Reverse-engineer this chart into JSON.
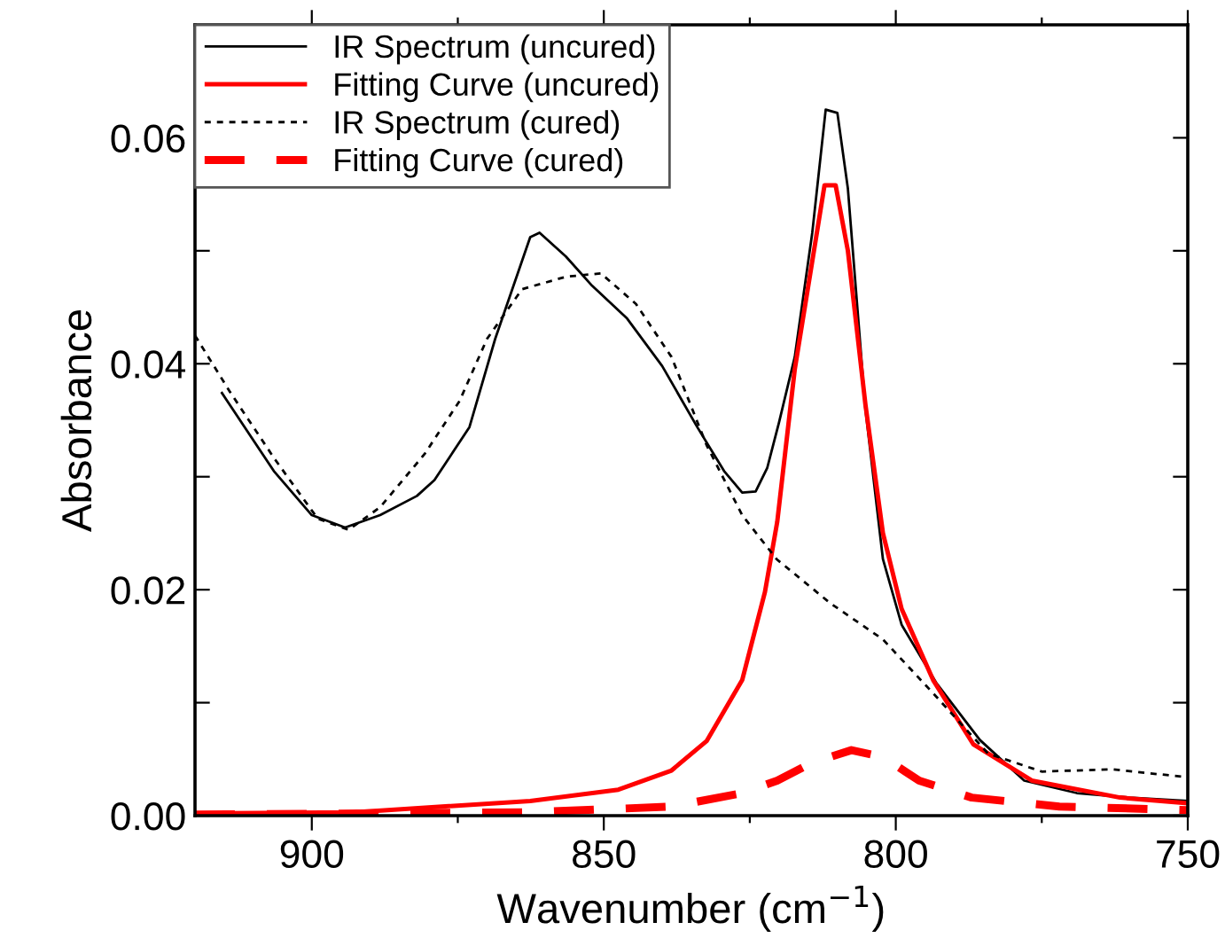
{
  "chart_data": {
    "type": "line",
    "xlabel": "Wavenumber (cm$^{−1}$)",
    "ylabel": "Absorbance",
    "xlim": [
      920,
      750
    ],
    "ylim": [
      0,
      0.07
    ],
    "xticks": [
      900,
      {
        "value": 875,
        "label": null
      },
      850,
      {
        "value": 825,
        "label": null
      },
      800,
      {
        "value": 775,
        "label": null
      },
      750
    ],
    "yticks": [
      {
        "value": 0,
        "label": "0.00"
      },
      {
        "value": 0.01,
        "label": null
      },
      {
        "value": 0.02,
        "label": "0.02"
      },
      {
        "value": 0.03,
        "label": null
      },
      {
        "value": 0.04,
        "label": "0.04"
      },
      {
        "value": 0.05,
        "label": null
      },
      {
        "value": 0.06,
        "label": "0.06"
      }
    ],
    "grid": false,
    "legend": "top left",
    "marker": "none",
    "series": [
      {
        "name": "IR Spectrum (uncured)",
        "color": "#000000",
        "line_style": "solid",
        "x": [
          915.5,
          906.5,
          900,
          894.3,
          888.3,
          882,
          879,
          873,
          868.6,
          862.6,
          861,
          856.5,
          852,
          846,
          840,
          834,
          829.4,
          826.3,
          824,
          822,
          820,
          817.3,
          814.3,
          812,
          810,
          808.2,
          805.2,
          802.2,
          799,
          793,
          785.6,
          778,
          769,
          760,
          750
        ],
        "values": [
          0.0375,
          0.0305,
          0.0266,
          0.0255,
          0.0266,
          0.0283,
          0.0297,
          0.0344,
          0.0422,
          0.0512,
          0.0516,
          0.0495,
          0.0469,
          0.044,
          0.0398,
          0.0344,
          0.0305,
          0.0286,
          0.0287,
          0.0308,
          0.0348,
          0.0406,
          0.0516,
          0.0625,
          0.0622,
          0.0555,
          0.036,
          0.0227,
          0.0169,
          0.0117,
          0.0067,
          0.0031,
          0.002,
          0.0016,
          0.0013
        ]
      },
      {
        "name": "Fitting Curve (uncured)",
        "color": "#ff0000",
        "line_style": "solid",
        "x": [
          920,
          892.8,
          862.6,
          847.5,
          838.4,
          832.4,
          826.3,
          822.4,
          820.3,
          817.3,
          813.7,
          812.2,
          810.3,
          808.2,
          805.2,
          802.2,
          799,
          793.6,
          786.7,
          776.7,
          761.6,
          750
        ],
        "values": [
          0.0002,
          0.0003,
          0.0013,
          0.0023,
          0.004,
          0.0066,
          0.012,
          0.0198,
          0.026,
          0.0395,
          0.051,
          0.0558,
          0.0558,
          0.05,
          0.0364,
          0.025,
          0.0183,
          0.012,
          0.0063,
          0.0031,
          0.0016,
          0.0011
        ]
      },
      {
        "name": "IR Spectrum (cured)",
        "color": "#000000",
        "line_style": "dotted",
        "x": [
          920,
          914,
          906.4,
          899,
          893.7,
          888.3,
          880.7,
          874.7,
          870,
          864,
          856.5,
          850.5,
          844.5,
          838.4,
          832.4,
          826.3,
          820.4,
          811.2,
          802.2,
          793,
          784.2,
          775,
          763,
          750
        ],
        "values": [
          0.0425,
          0.0375,
          0.0316,
          0.0263,
          0.0253,
          0.0273,
          0.032,
          0.0367,
          0.0422,
          0.0466,
          0.0477,
          0.048,
          0.0453,
          0.0406,
          0.0328,
          0.0266,
          0.0227,
          0.0188,
          0.0156,
          0.0105,
          0.0055,
          0.0039,
          0.0041,
          0.0034
        ]
      },
      {
        "name": "Fitting Curve (cured)",
        "color": "#ff0000",
        "line_style": "dashed",
        "x": [
          920,
          862.6,
          838.4,
          826.3,
          820.3,
          814.3,
          807.6,
          802.2,
          796,
          787,
          772,
          750
        ],
        "values": [
          0.0001,
          0.0003,
          0.0008,
          0.002,
          0.0031,
          0.0047,
          0.0058,
          0.0052,
          0.0031,
          0.0016,
          0.0008,
          0.0005
        ]
      }
    ]
  }
}
